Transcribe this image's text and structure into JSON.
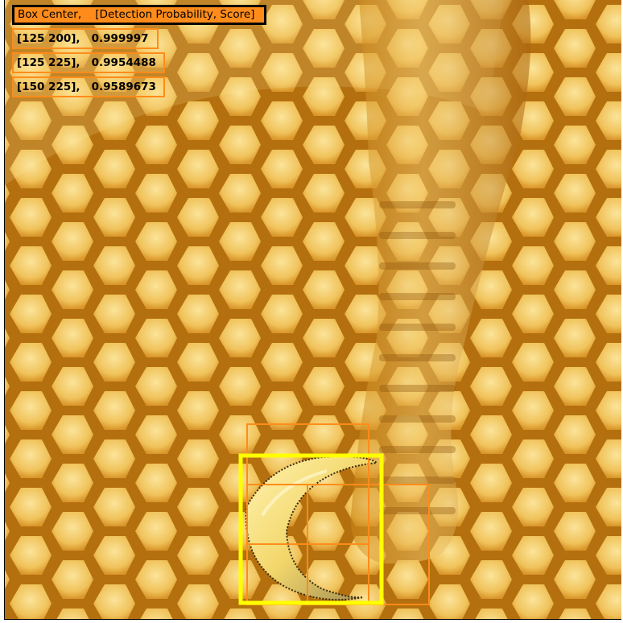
{
  "legend": {
    "header": "Box Center,    [Detection Probability, Score]",
    "rows": [
      {
        "center": "[125 200],",
        "score": "0.999997"
      },
      {
        "center": "[125 225],",
        "score": "0.9954488"
      },
      {
        "center": "[150 225],",
        "score": "0.9589673"
      }
    ]
  },
  "image": {
    "subject": "honeycomb-with-honey-drip",
    "target": "banana"
  },
  "colors": {
    "honeycomb_base": "#c98a1c",
    "cell_fill": "#f2c766",
    "cell_edge": "#a8620e",
    "proposal_box": "#ff8c1a",
    "best_box": "#ffff00",
    "header_bg": "#ff8c1a"
  }
}
